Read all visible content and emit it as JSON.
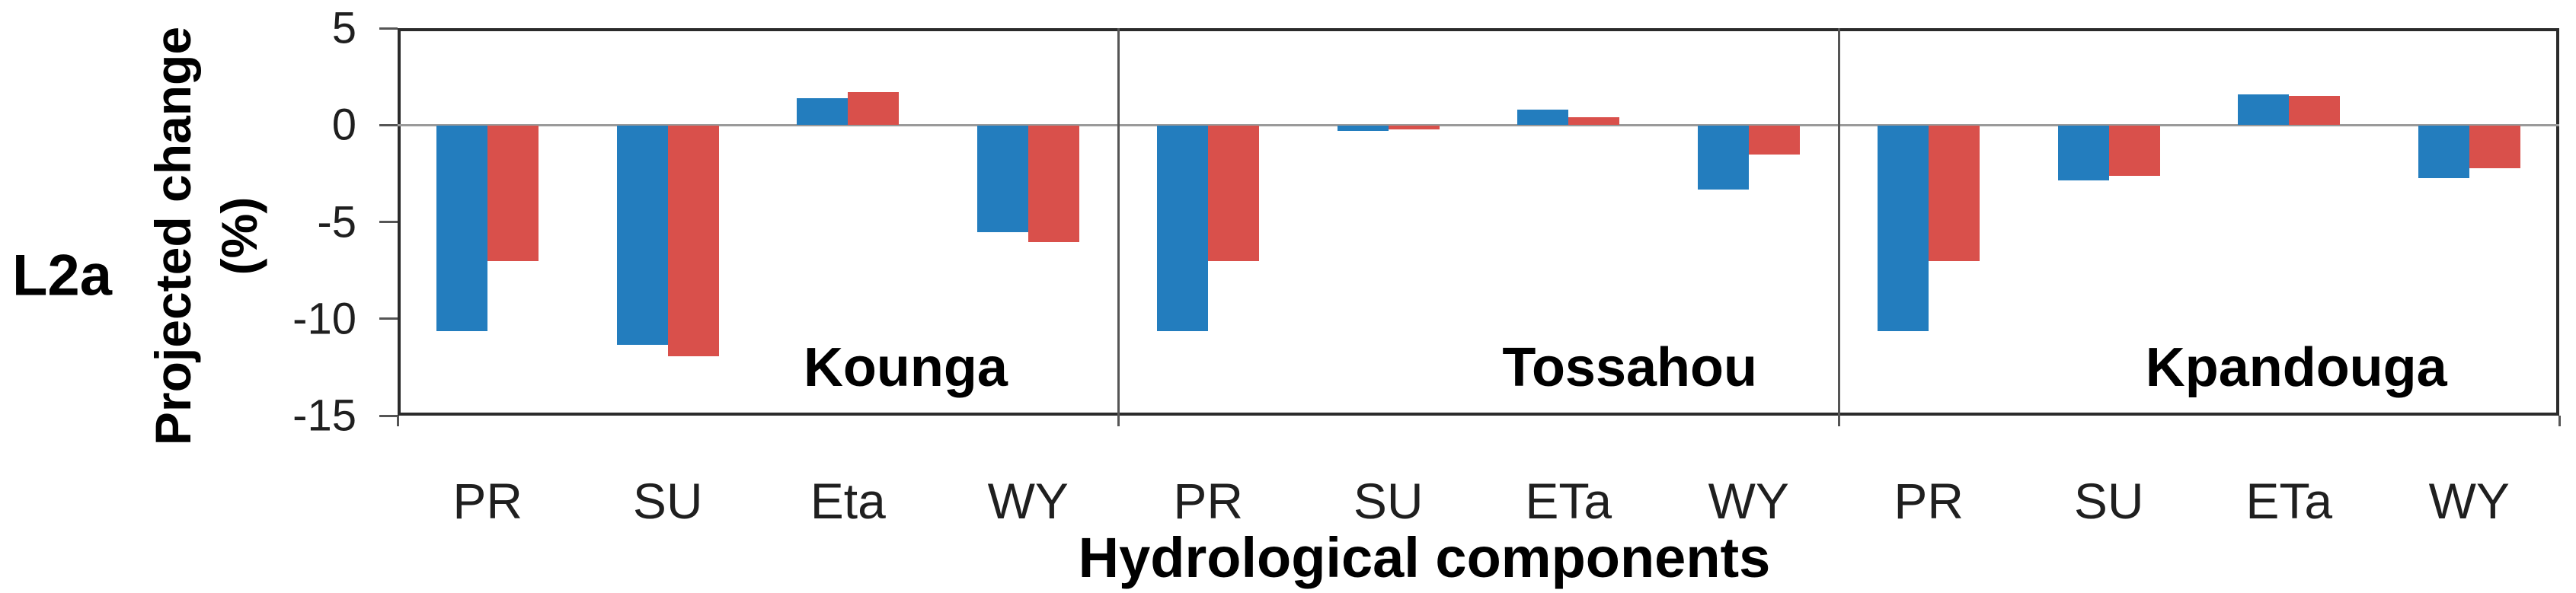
{
  "figure_label": "L2a",
  "y_axis": {
    "title_line1": "Projected change",
    "title_line2": "(%)",
    "tick_labels": [
      "5",
      "0",
      "-5",
      "-10",
      "-15"
    ],
    "tick_values": [
      5,
      0,
      -5,
      -10,
      -15
    ]
  },
  "x_axis": {
    "title": "Hydrological components"
  },
  "colors": {
    "series_blue": "#237DBE",
    "series_red": "#D9504B",
    "zero_line": "#9a9a9a",
    "plot_border": "#2b2b2b",
    "panel_divider": "#555555",
    "text": "#1f1f1f"
  },
  "chart_data": {
    "type": "bar",
    "title": "",
    "xlabel": "Hydrological components",
    "ylabel": "Projected change (%)",
    "ylim": [
      -15,
      5
    ],
    "grid": "zero-line-only",
    "legend": "none",
    "panels": [
      {
        "name": "Kounga",
        "categories": [
          "PR",
          "SU",
          "Eta",
          "WY"
        ],
        "series": [
          {
            "name": "blue",
            "values": [
              -10.6,
              -11.3,
              1.4,
              -5.5
            ]
          },
          {
            "name": "red",
            "values": [
              -7.0,
              -11.9,
              1.7,
              -6.0
            ]
          }
        ]
      },
      {
        "name": "Tossahou",
        "categories": [
          "PR",
          "SU",
          "ETa",
          "WY"
        ],
        "series": [
          {
            "name": "blue",
            "values": [
              -10.6,
              -0.25,
              0.8,
              -3.3
            ]
          },
          {
            "name": "red",
            "values": [
              -7.0,
              -0.2,
              0.4,
              -1.5
            ]
          }
        ]
      },
      {
        "name": "Kpandouga",
        "categories": [
          "PR",
          "SU",
          "ETa",
          "WY"
        ],
        "series": [
          {
            "name": "blue",
            "values": [
              -10.6,
              -2.8,
              1.6,
              -2.7
            ]
          },
          {
            "name": "red",
            "values": [
              -7.0,
              -2.6,
              1.5,
              -2.2
            ]
          }
        ]
      }
    ]
  }
}
